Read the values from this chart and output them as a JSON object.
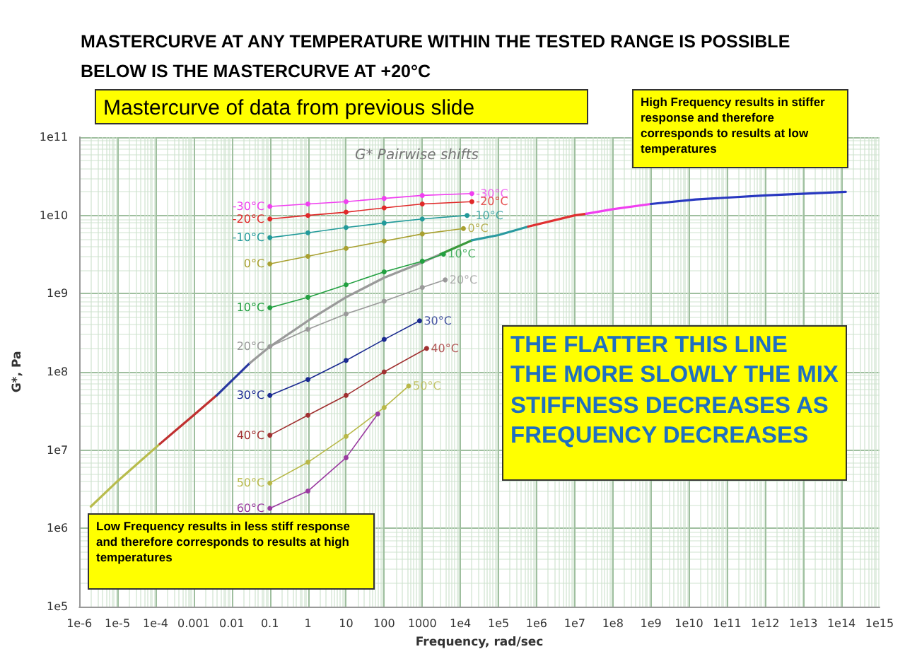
{
  "chart_data": {
    "type": "line",
    "title": "MASTERCURVE AT ANY TEMPERATURE WITHIN THE TESTED RANGE IS POSSIBLE\nBELOW IS THE MASTERCURVE AT +20°C",
    "subtitle": "G* Pairwise shifts",
    "xlabel": "Frequency, rad/sec",
    "ylabel": "G*, Pa",
    "log": "xy",
    "grid": true,
    "legend": false,
    "xlim": [
      1e-06,
      1000000000000000.0
    ],
    "ylim": [
      100000.0,
      100000000000.0
    ],
    "xticks": [
      {
        "value": 1e-06,
        "label": "1e-6"
      },
      {
        "value": 1e-05,
        "label": "1e-5"
      },
      {
        "value": 0.0001,
        "label": "1e-4"
      },
      0.001,
      0.01,
      0.1,
      1,
      10,
      100,
      1000,
      {
        "value": 10000.0,
        "label": "1e4"
      },
      {
        "value": 100000.0,
        "label": "1e5"
      },
      {
        "value": 1000000.0,
        "label": "1e6"
      },
      {
        "value": 10000000.0,
        "label": "1e7"
      },
      {
        "value": 100000000.0,
        "label": "1e8"
      },
      {
        "value": 1000000000.0,
        "label": "1e9"
      },
      {
        "value": 10000000000.0,
        "label": "1e10"
      },
      {
        "value": 100000000000.0,
        "label": "1e11"
      },
      {
        "value": 1000000000000.0,
        "label": "1e12"
      },
      {
        "value": 10000000000000.0,
        "label": "1e13"
      },
      {
        "value": 100000000000000.0,
        "label": "1e14"
      },
      {
        "value": 1000000000000000.0,
        "label": "1e15"
      }
    ],
    "yticks": [
      {
        "value": 100000.0,
        "label": "1e5"
      },
      {
        "value": 1000000.0,
        "label": "1e6"
      },
      {
        "value": 10000000.0,
        "label": "1e7"
      },
      {
        "value": 100000000.0,
        "label": "1e8"
      },
      {
        "value": 1000000000.0,
        "label": "1e9"
      },
      {
        "value": 10000000000.0,
        "label": "1e10"
      },
      {
        "value": 100000000000.0,
        "label": "1e11"
      }
    ],
    "series": [
      {
        "color": "#b8bc4c",
        "marker": "none",
        "x": [
          2e-06,
          1e-05,
          0.00013
        ],
        "values": [
          1900000.0,
          4000000.0,
          12000000.0
        ]
      },
      {
        "color": "#c03030",
        "marker": "none",
        "x": [
          0.00013,
          0.001,
          0.004
        ],
        "values": [
          12000000.0,
          28000000.0,
          50000000.0
        ]
      },
      {
        "color": "#2838a0",
        "marker": "none",
        "x": [
          0.004,
          0.03
        ],
        "values": [
          50000000.0,
          130000000.0
        ]
      },
      {
        "color": "#9a9a9a",
        "marker": "none",
        "x": [
          0.03,
          0.1,
          1,
          10,
          100,
          1000,
          3000
        ],
        "values": [
          130000000.0,
          210000000.0,
          450000000.0,
          900000000.0,
          1600000000.0,
          2500000000.0,
          3200000000.0
        ]
      },
      {
        "color": "#3c9a3c",
        "marker": "none",
        "x": [
          3000,
          20000.0
        ],
        "values": [
          3200000000.0,
          4800000000.0
        ]
      },
      {
        "color": "#2a9aa0",
        "marker": "none",
        "x": [
          20000.0,
          100000.0,
          600000.0
        ],
        "values": [
          4800000000.0,
          5600000000.0,
          7200000000.0
        ]
      },
      {
        "color": "#e03030",
        "marker": "none",
        "x": [
          600000.0,
          10000000.0,
          20000000.0
        ],
        "values": [
          7200000000.0,
          10000000000.0,
          10500000000.0
        ]
      },
      {
        "color": "#f040f0",
        "marker": "none",
        "x": [
          20000000.0,
          100000000.0,
          1000000000.0
        ],
        "values": [
          10500000000.0,
          12000000000.0,
          14000000000.0
        ]
      },
      {
        "color": "#2838c0",
        "marker": "none",
        "x": [
          1000000000.0,
          15000000000.0,
          1000000000000.0,
          130000000000000.0
        ],
        "values": [
          14000000000.0,
          16000000000.0,
          18000000000.0,
          20000000000.0
        ]
      },
      {
        "name": "-30°C",
        "color": "#f040f0",
        "marker": "circle",
        "x": [
          0.1,
          1,
          10,
          100,
          1000,
          20000.0
        ],
        "values": [
          13000000000.0,
          14000000000.0,
          15000000000.0,
          16500000000.0,
          18000000000.0,
          19000000000.0
        ]
      },
      {
        "name": "-20°C",
        "color": "#e02828",
        "marker": "circle",
        "x": [
          0.1,
          1,
          10,
          100,
          1000,
          20000.0
        ],
        "values": [
          9000000000.0,
          10000000000.0,
          11000000000.0,
          12500000000.0,
          14000000000.0,
          15000000000.0
        ]
      },
      {
        "name": "-10°C",
        "color": "#229a9a",
        "marker": "circle",
        "x": [
          0.1,
          1,
          10,
          100,
          1000,
          15000.0
        ],
        "values": [
          5200000000.0,
          6000000000.0,
          7000000000.0,
          8000000000.0,
          9000000000.0,
          10000000000.0
        ]
      },
      {
        "name": "0°C",
        "color": "#a8a030",
        "marker": "circle",
        "x": [
          0.1,
          1,
          10,
          100,
          1000,
          12000.0
        ],
        "values": [
          2400000000.0,
          3000000000.0,
          3800000000.0,
          4700000000.0,
          5800000000.0,
          6800000000.0
        ]
      },
      {
        "name": "10°C",
        "color": "#22a040",
        "marker": "circle",
        "x": [
          0.1,
          1,
          10,
          100,
          1000,
          3600
        ],
        "values": [
          660000000.0,
          900000000.0,
          1300000000.0,
          1900000000.0,
          2600000000.0,
          3200000000.0
        ]
      },
      {
        "name": "20°C",
        "color": "#9a9a9a",
        "marker": "circle",
        "x": [
          0.1,
          1,
          10,
          100,
          1000,
          4000
        ],
        "values": [
          210000000.0,
          350000000.0,
          550000000.0,
          800000000.0,
          1200000000.0,
          1500000000.0
        ]
      },
      {
        "name": "30°C",
        "color": "#1a2a90",
        "marker": "circle",
        "x": [
          0.1,
          1,
          10,
          100,
          850
        ],
        "values": [
          50000000.0,
          80000000.0,
          140000000.0,
          260000000.0,
          450000000.0
        ]
      },
      {
        "name": "40°C",
        "color": "#a03030",
        "marker": "circle",
        "x": [
          0.1,
          1,
          10,
          100,
          1300
        ],
        "values": [
          15500000.0,
          28000000.0,
          50000000.0,
          100000000.0,
          200000000.0
        ]
      },
      {
        "name": "50°C",
        "color": "#b8b848",
        "marker": "circle",
        "x": [
          0.1,
          1,
          10,
          100,
          440
        ],
        "values": [
          3800000.0,
          7000000.0,
          15000000.0,
          35000000.0,
          66000000.0
        ]
      },
      {
        "name": "60°C",
        "color": "#9a3aa0",
        "marker": "circle",
        "x": [
          0.1,
          1,
          10,
          68
        ],
        "values": [
          1800000.0,
          3000000.0,
          8000000.0,
          29000000.0
        ]
      }
    ],
    "annotations": [
      "Mastercurve of data from previous slide",
      "High Frequency results in stiffer response and therefore corresponds to results at low temperatures",
      "THE FLATTER THIS LINE THE MORE SLOWLY THE MIX STIFFNESS DECREASES AS FREQUENCY DECREASES",
      "Low Frequency results in less stiff response and therefore corresponds to results at high temperatures",
      "-30°C",
      "-20°C",
      "-10°C",
      "0°C",
      "10°C",
      "20°C",
      "30°C",
      "40°C",
      "50°C"
    ]
  }
}
